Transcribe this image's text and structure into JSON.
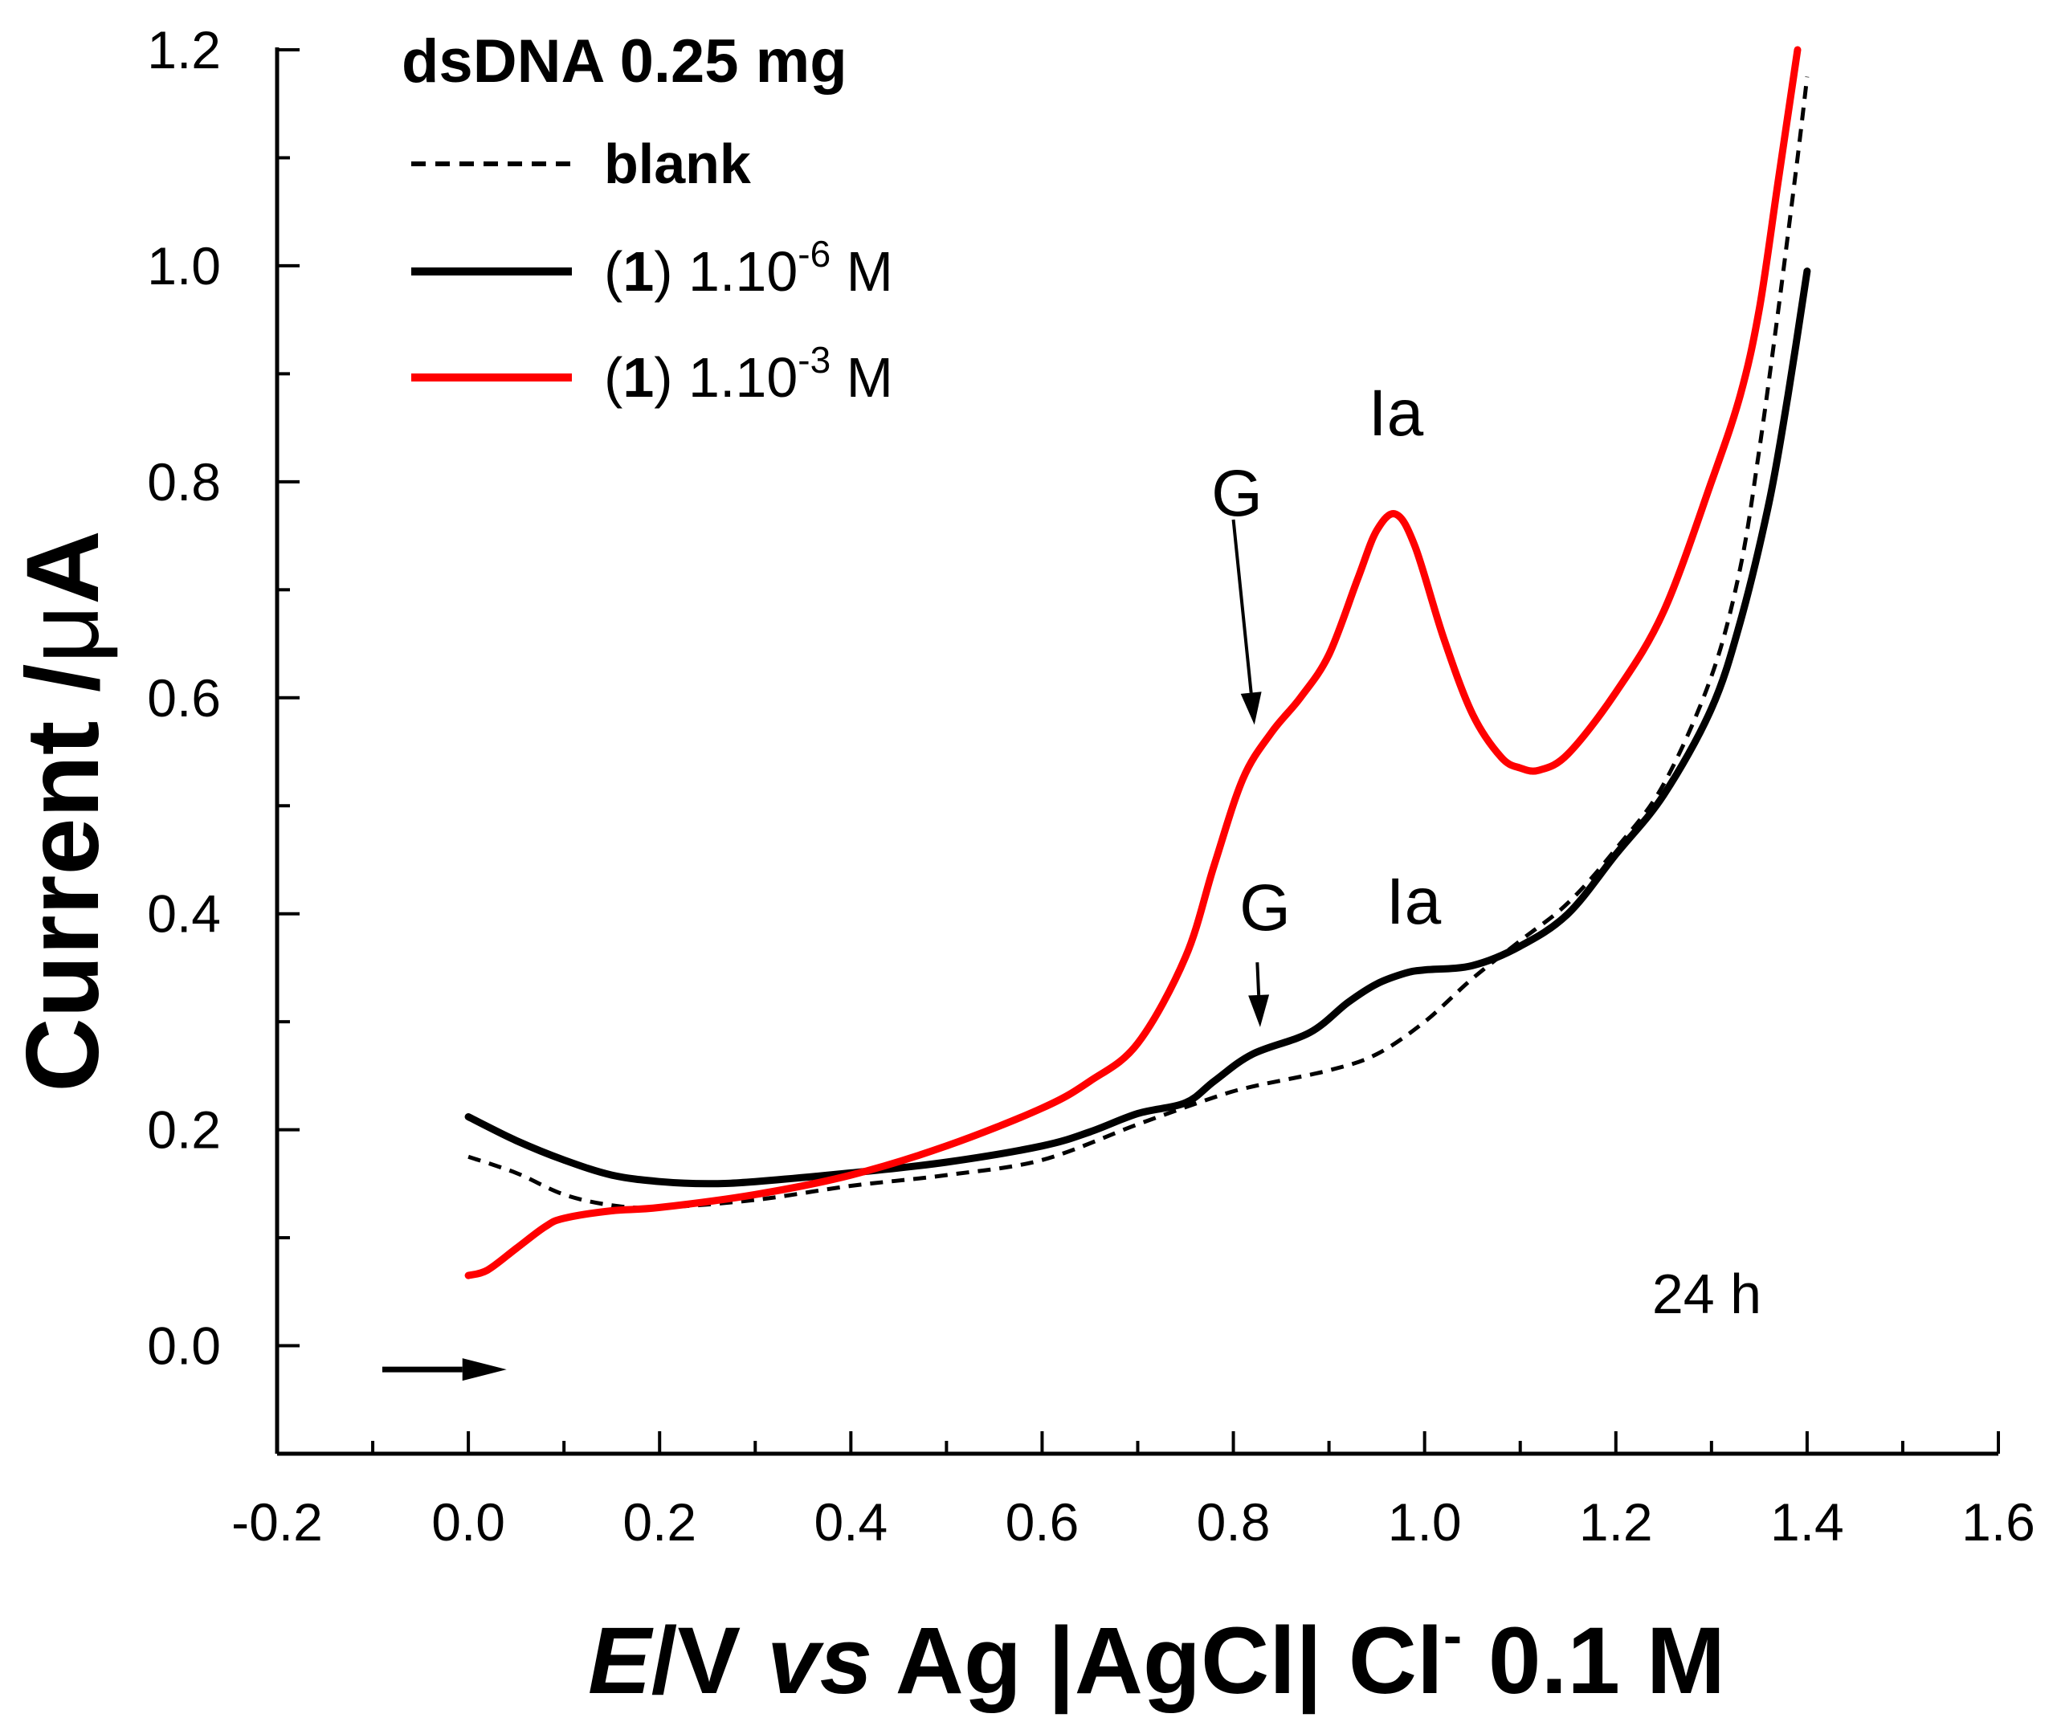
{
  "chart_data": {
    "type": "line",
    "xlabel": {
      "italic_e": "E",
      "rest_1": "/V ",
      "italic_vs": "vs",
      "rest_2": " Ag |AgCl| Cl",
      "sup": "-",
      "rest_3": " 0.1 M"
    },
    "ylabel": {
      "prefix": "Current /",
      "mu": "μ",
      "unit": "A"
    },
    "xlim": [
      -0.2,
      1.6
    ],
    "ylim": [
      -0.1,
      1.2
    ],
    "x_ticks": [
      "-0.2",
      "0.0",
      "0.2",
      "0.4",
      "0.6",
      "0.8",
      "1.0",
      "1.2",
      "1.4",
      "1.6"
    ],
    "y_ticks": [
      "0.0",
      "0.2",
      "0.4",
      "0.6",
      "0.8",
      "1.0",
      "1.2"
    ],
    "grid": false,
    "legend_placement": "top-left",
    "legend": {
      "title": "dsDNA 0.25 mg",
      "entries": [
        {
          "series": "blank",
          "text": "blank",
          "bold": true
        },
        {
          "series": "c6",
          "paren_open": "(",
          "bold_num": "1",
          "paren_close": ")",
          "conc": " 1.10",
          "exp": "-6",
          "unit": " M"
        },
        {
          "series": "c3",
          "paren_open": "(",
          "bold_num": "1",
          "paren_close": ")",
          "conc": " 1.10",
          "exp": "-3",
          "unit": " M"
        }
      ]
    },
    "annotations": {
      "red_G": "G",
      "red_Ia": "Ia",
      "black_G": "G",
      "black_Ia": "Ia",
      "time": "24 h"
    },
    "annotation_points": {
      "red_G_arrow_from": [
        0.8,
        0.765
      ],
      "red_G_arrow_to": [
        0.822,
        0.575
      ],
      "black_G_arrow_from": [
        0.825,
        0.355
      ],
      "black_G_arrow_to": [
        0.828,
        0.295
      ],
      "scan_arrow_from": [
        -0.09,
        -0.022
      ],
      "scan_arrow_to": [
        0.04,
        -0.022
      ]
    },
    "series": [
      {
        "name": "blank",
        "style": "dashed",
        "color": "#000000",
        "x": [
          0.0,
          0.05,
          0.1,
          0.15,
          0.2,
          0.3,
          0.4,
          0.5,
          0.6,
          0.7,
          0.78,
          0.82,
          0.9,
          0.95,
          1.0,
          1.05,
          1.1,
          1.15,
          1.2,
          1.25,
          1.3,
          1.33,
          1.35,
          1.37,
          1.39,
          1.4
        ],
        "y": [
          0.175,
          0.16,
          0.14,
          0.13,
          0.128,
          0.135,
          0.148,
          0.158,
          0.172,
          0.205,
          0.23,
          0.24,
          0.255,
          0.27,
          0.3,
          0.34,
          0.375,
          0.41,
          0.46,
          0.52,
          0.62,
          0.72,
          0.83,
          0.96,
          1.1,
          1.175
        ]
      },
      {
        "name": "c6",
        "style": "solid",
        "color": "#000000",
        "x": [
          0.0,
          0.05,
          0.1,
          0.15,
          0.2,
          0.25,
          0.3,
          0.4,
          0.5,
          0.6,
          0.65,
          0.7,
          0.75,
          0.78,
          0.82,
          0.88,
          0.92,
          0.95,
          0.98,
          1.0,
          1.05,
          1.1,
          1.15,
          1.2,
          1.25,
          1.3,
          1.33,
          1.36,
          1.38,
          1.4
        ],
        "y": [
          0.212,
          0.19,
          0.172,
          0.158,
          0.152,
          0.15,
          0.152,
          0.16,
          0.17,
          0.185,
          0.198,
          0.215,
          0.225,
          0.245,
          0.27,
          0.29,
          0.318,
          0.335,
          0.345,
          0.348,
          0.352,
          0.37,
          0.4,
          0.455,
          0.51,
          0.59,
          0.67,
          0.78,
          0.88,
          0.995
        ]
      },
      {
        "name": "c3",
        "style": "solid",
        "color": "#ff0000",
        "x": [
          0.0,
          0.02,
          0.05,
          0.08,
          0.1,
          0.15,
          0.2,
          0.3,
          0.4,
          0.5,
          0.6,
          0.65,
          0.7,
          0.75,
          0.78,
          0.81,
          0.84,
          0.87,
          0.9,
          0.93,
          0.95,
          0.97,
          0.99,
          1.02,
          1.05,
          1.08,
          1.1,
          1.12,
          1.15,
          1.2,
          1.25,
          1.3,
          1.33,
          1.35,
          1.37,
          1.39
        ],
        "y": [
          0.065,
          0.07,
          0.09,
          0.11,
          0.118,
          0.125,
          0.128,
          0.14,
          0.158,
          0.185,
          0.22,
          0.245,
          0.28,
          0.36,
          0.445,
          0.525,
          0.568,
          0.6,
          0.64,
          0.71,
          0.755,
          0.77,
          0.74,
          0.655,
          0.585,
          0.545,
          0.535,
          0.533,
          0.548,
          0.605,
          0.68,
          0.8,
          0.88,
          0.96,
          1.08,
          1.2
        ]
      }
    ]
  }
}
